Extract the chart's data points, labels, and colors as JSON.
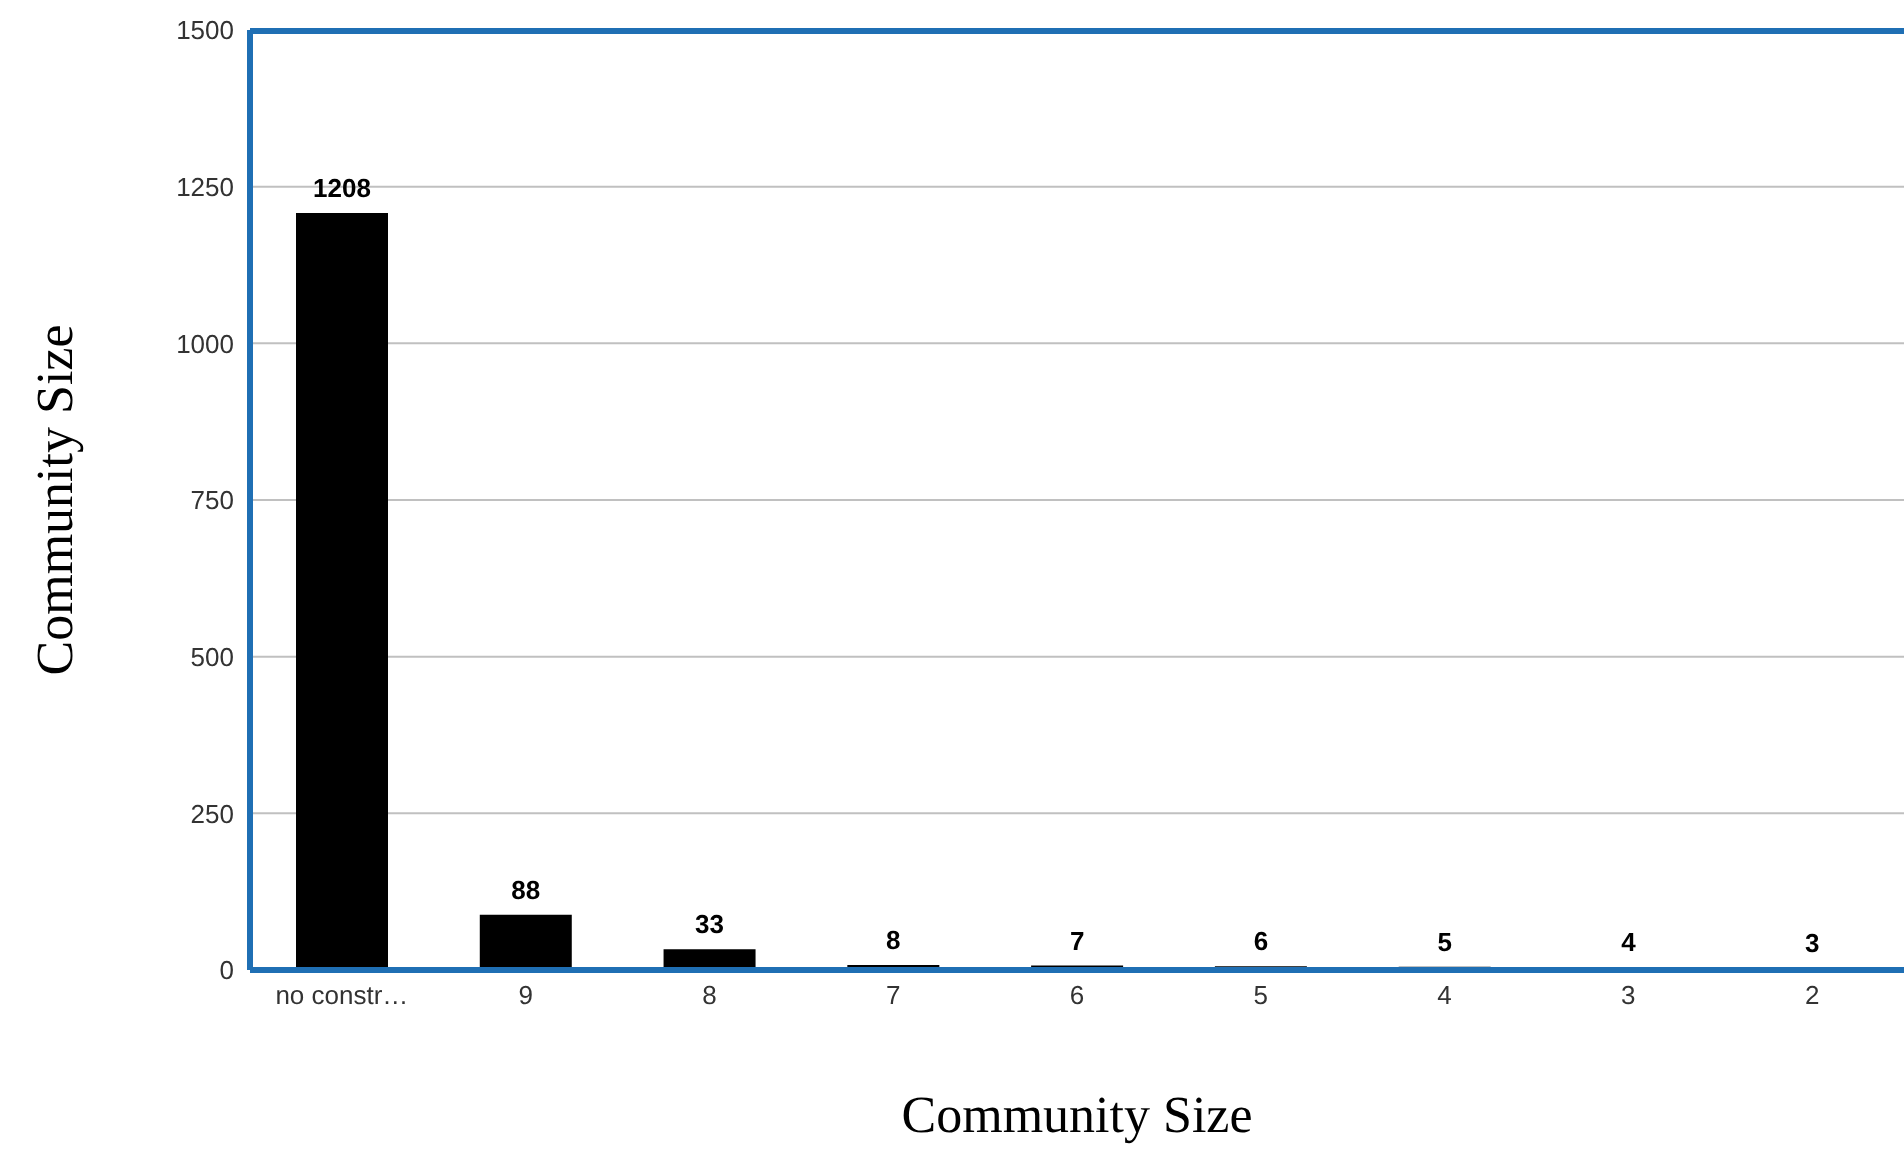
{
  "chart_data": {
    "type": "bar",
    "xlabel": "Community Size",
    "ylabel": "Community Size",
    "categories": [
      "no constr…",
      "9",
      "8",
      "7",
      "6",
      "5",
      "4",
      "3",
      "2"
    ],
    "values": [
      1208,
      88,
      33,
      8,
      7,
      6,
      5,
      4,
      3
    ],
    "color": "#000000",
    "ylim": [
      0,
      1500
    ],
    "yticks": [
      0,
      250,
      500,
      750,
      1000,
      1250,
      1500
    ],
    "grid": "y",
    "data_labels": true,
    "legend": false
  }
}
